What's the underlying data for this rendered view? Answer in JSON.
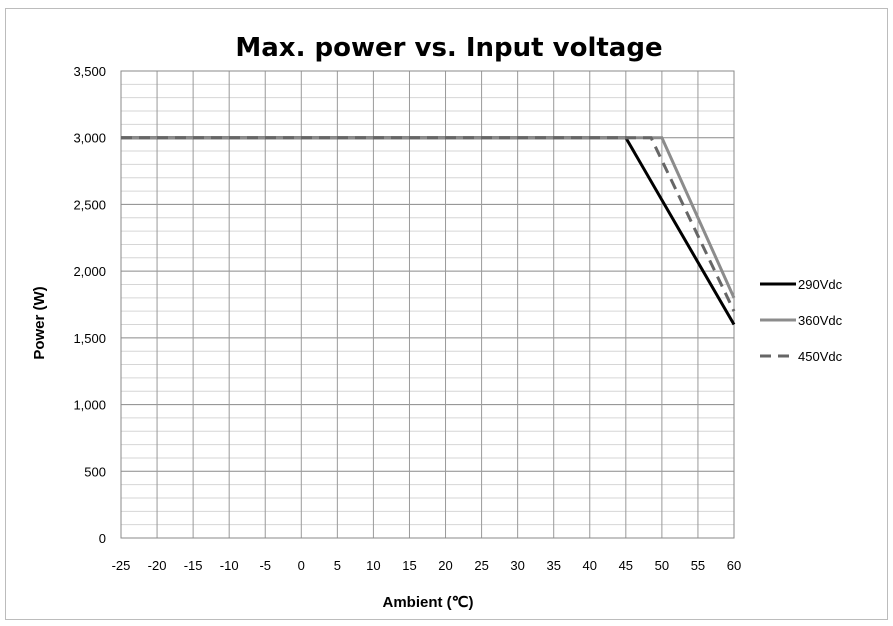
{
  "chart_data": {
    "type": "line",
    "title": "Max. power vs. Input voltage",
    "xlabel": "Ambient (℃)",
    "ylabel": "Power (W)",
    "xlim": [
      -25,
      60
    ],
    "ylim": [
      0,
      3500
    ],
    "x_ticks": [
      "-25",
      "-20",
      "-15",
      "-10",
      "-5",
      "0",
      "5",
      "10",
      "15",
      "20",
      "25",
      "30",
      "35",
      "40",
      "45",
      "50",
      "55",
      "60"
    ],
    "y_ticks": [
      "0",
      "500",
      "1,000",
      "1,500",
      "2,000",
      "2,500",
      "3,000",
      "3,500"
    ],
    "grid": true,
    "legend_position": "right",
    "series": [
      {
        "name": "290Vdc",
        "color": "#000000",
        "style": "solid",
        "x": [
          -25,
          45,
          60
        ],
        "y": [
          3000,
          3000,
          1600
        ]
      },
      {
        "name": "360Vdc",
        "color": "#8c8c8c",
        "style": "solid",
        "x": [
          -25,
          50,
          60
        ],
        "y": [
          3000,
          3000,
          1800
        ]
      },
      {
        "name": "450Vdc",
        "color": "#666666",
        "style": "dashed",
        "x": [
          -25,
          48.5,
          60
        ],
        "y": [
          3000,
          3000,
          1700
        ]
      }
    ]
  }
}
